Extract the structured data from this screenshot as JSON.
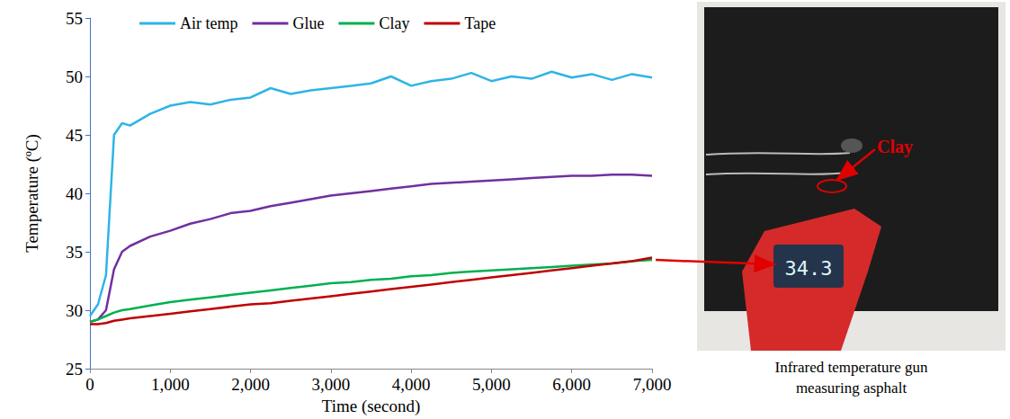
{
  "chart_data": {
    "type": "line",
    "x_label": "Time (second)",
    "y_label": "Temperature (ºC)",
    "x": [
      0,
      100,
      200,
      300,
      400,
      500,
      750,
      1000,
      1250,
      1500,
      1750,
      2000,
      2250,
      2500,
      2750,
      3000,
      3250,
      3500,
      3750,
      4000,
      4250,
      4500,
      4750,
      5000,
      5250,
      5500,
      5750,
      6000,
      6250,
      6500,
      6750,
      7000
    ],
    "series": [
      {
        "name": "Air temp",
        "color": "#2eb4e6",
        "values": [
          29.5,
          30.5,
          33,
          45,
          46,
          45.8,
          46.8,
          47.5,
          47.8,
          47.6,
          48,
          48.2,
          49,
          48.5,
          48.8,
          49,
          49.2,
          49.4,
          50,
          49.2,
          49.6,
          49.8,
          50.3,
          49.6,
          50,
          49.8,
          50.4,
          49.9,
          50.2,
          49.7,
          50.2,
          49.9
        ]
      },
      {
        "name": "Glue",
        "color": "#7030a0",
        "values": [
          29,
          29.2,
          30,
          33.5,
          35,
          35.5,
          36.3,
          36.8,
          37.4,
          37.8,
          38.3,
          38.5,
          38.9,
          39.2,
          39.5,
          39.8,
          40,
          40.2,
          40.4,
          40.6,
          40.8,
          40.9,
          41,
          41.1,
          41.2,
          41.3,
          41.4,
          41.5,
          41.5,
          41.6,
          41.6,
          41.5
        ]
      },
      {
        "name": "Clay",
        "color": "#00b050",
        "values": [
          29,
          29.2,
          29.5,
          29.8,
          30,
          30.1,
          30.4,
          30.7,
          30.9,
          31.1,
          31.3,
          31.5,
          31.7,
          31.9,
          32.1,
          32.3,
          32.4,
          32.6,
          32.7,
          32.9,
          33,
          33.2,
          33.3,
          33.4,
          33.5,
          33.6,
          33.7,
          33.8,
          33.9,
          34,
          34.2,
          34.3
        ]
      },
      {
        "name": "Tape",
        "color": "#c00000",
        "values": [
          28.8,
          28.8,
          28.9,
          29.1,
          29.2,
          29.3,
          29.5,
          29.7,
          29.9,
          30.1,
          30.3,
          30.5,
          30.6,
          30.8,
          31,
          31.2,
          31.4,
          31.6,
          31.8,
          32,
          32.2,
          32.4,
          32.6,
          32.8,
          33,
          33.2,
          33.4,
          33.6,
          33.8,
          34,
          34.2,
          34.5
        ]
      }
    ],
    "xlim": [
      0,
      7000
    ],
    "xticks": [
      0,
      1000,
      2000,
      3000,
      4000,
      5000,
      6000,
      7000
    ],
    "ylim": [
      25,
      55
    ],
    "yticks": [
      25,
      30,
      35,
      40,
      45,
      50,
      55
    ],
    "grid": false,
    "legend": "top"
  },
  "photo": {
    "annotation": "Clay",
    "display_reading": "34.3",
    "caption": "Infrared temperature gun measuring asphalt"
  }
}
